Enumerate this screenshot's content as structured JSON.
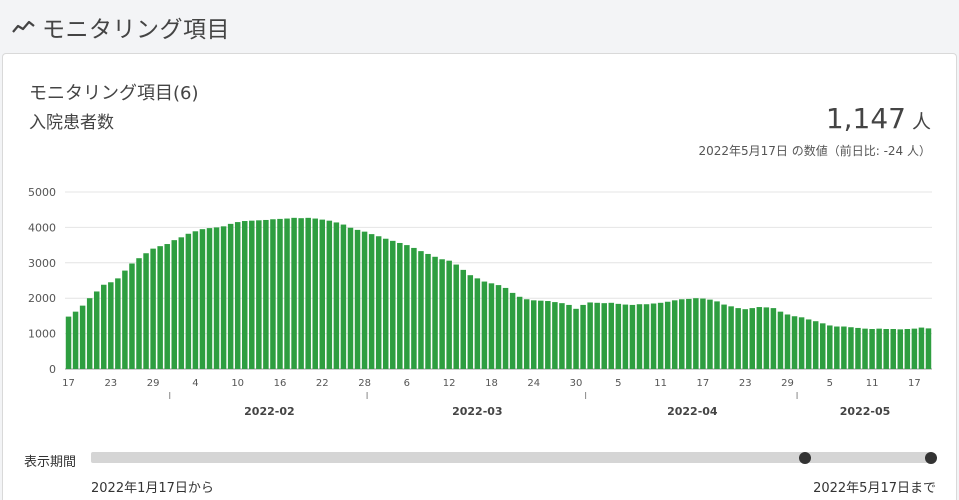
{
  "header": {
    "title": "モニタリング項目",
    "icon": "trend-line-icon"
  },
  "card": {
    "title": "モニタリング項目(6)",
    "subtitle": "入院患者数",
    "value": "1,147",
    "unit": "人",
    "note": "2022年5月17日 の数値（前日比: -24 人）"
  },
  "slider": {
    "label": "表示期間",
    "start_label": "2022年1月17日から",
    "end_label": "2022年5月17日まで",
    "start_position": 0.85,
    "end_position": 1.0
  },
  "chart_data": {
    "type": "bar",
    "color": "#2e9e40",
    "ylim": [
      0,
      5000
    ],
    "yticks": [
      0,
      1000,
      2000,
      3000,
      4000,
      5000
    ],
    "grid": true,
    "start_date": "2022-01-17",
    "day_ticks": [
      "17",
      "23",
      "29",
      "4",
      "10",
      "16",
      "22",
      "28",
      "6",
      "12",
      "18",
      "24",
      "30",
      "5",
      "11",
      "17",
      "23",
      "29",
      "5",
      "11",
      "17"
    ],
    "month_labels": [
      "2022-02",
      "2022-03",
      "2022-04",
      "2022-05"
    ],
    "values": [
      1480,
      1620,
      1790,
      2000,
      2190,
      2380,
      2450,
      2560,
      2780,
      2980,
      3130,
      3270,
      3400,
      3470,
      3530,
      3640,
      3720,
      3820,
      3890,
      3950,
      3980,
      4000,
      4030,
      4100,
      4150,
      4180,
      4190,
      4200,
      4210,
      4230,
      4240,
      4250,
      4270,
      4260,
      4270,
      4250,
      4220,
      4190,
      4140,
      4080,
      3990,
      3930,
      3880,
      3810,
      3750,
      3680,
      3620,
      3560,
      3500,
      3420,
      3330,
      3250,
      3170,
      3100,
      3060,
      2950,
      2800,
      2650,
      2560,
      2470,
      2420,
      2370,
      2290,
      2150,
      2040,
      1970,
      1940,
      1930,
      1920,
      1890,
      1860,
      1810,
      1700,
      1810,
      1880,
      1870,
      1860,
      1870,
      1840,
      1820,
      1810,
      1830,
      1830,
      1850,
      1870,
      1900,
      1940,
      1970,
      1980,
      2000,
      1990,
      1960,
      1910,
      1820,
      1770,
      1720,
      1690,
      1720,
      1750,
      1740,
      1720,
      1620,
      1540,
      1490,
      1460,
      1400,
      1350,
      1290,
      1230,
      1200,
      1200,
      1180,
      1160,
      1140,
      1130,
      1140,
      1130,
      1130,
      1120,
      1130,
      1140,
      1170,
      1147
    ]
  }
}
